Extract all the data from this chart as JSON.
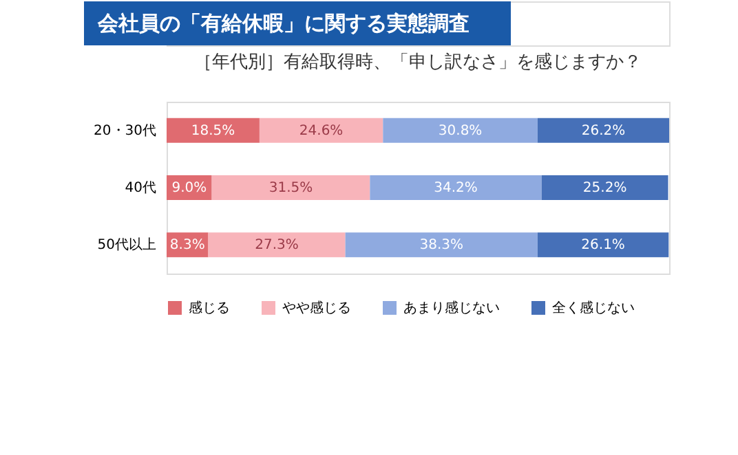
{
  "chart_data": {
    "type": "bar",
    "orientation": "horizontal",
    "stacked": true,
    "title": "会社員の「有給休暇」に関する実態調査",
    "subtitle": "［年代別］有給取得時、「申し訳なさ」を感じますか？",
    "categories": [
      "20・30代",
      "40代",
      "50代以上"
    ],
    "legend": "bottom",
    "series": [
      {
        "name": "感じる",
        "color": "#e06b70",
        "values": [
          18.5,
          9.0,
          8.3
        ],
        "value_labels": [
          "18.5%",
          "9.0%",
          "8.3%"
        ]
      },
      {
        "name": "やや感じる",
        "color": "#f8b4ba",
        "values": [
          24.6,
          31.5,
          27.3
        ],
        "value_labels": [
          "24.6%",
          "31.5%",
          "27.3%"
        ]
      },
      {
        "name": "あまり感じない",
        "color": "#8faae0",
        "values": [
          30.8,
          34.2,
          38.3
        ],
        "value_labels": [
          "30.8%",
          "34.2%",
          "38.3%"
        ]
      },
      {
        "name": "全く感じない",
        "color": "#4670b8",
        "values": [
          26.2,
          25.2,
          26.1
        ],
        "value_labels": [
          "26.2%",
          "25.2%",
          "26.1%"
        ]
      }
    ]
  }
}
